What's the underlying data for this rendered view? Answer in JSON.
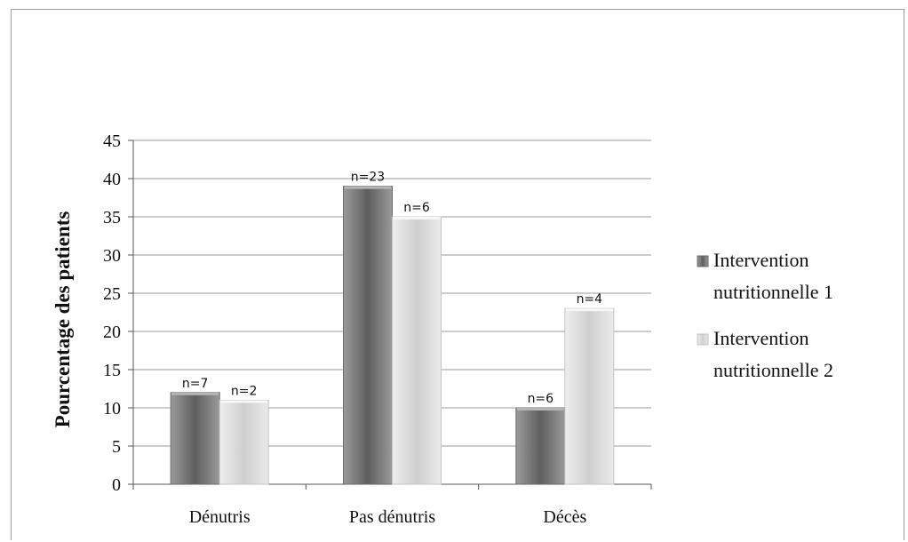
{
  "chart_data": {
    "type": "bar",
    "categories": [
      "Dénutris",
      "Pas dénutris",
      "Décès"
    ],
    "ylabel": "Pourcentage des patients",
    "xlabel": "",
    "ylim": [
      0,
      45
    ],
    "yticks": [
      0,
      5,
      10,
      15,
      20,
      25,
      30,
      35,
      40,
      45
    ],
    "grid": true,
    "legend_position": "right",
    "series": [
      {
        "name": "Intervention nutritionnelle 1",
        "values": [
          12,
          39,
          10
        ],
        "labels": [
          "n=7",
          "n=23",
          "n=6"
        ],
        "color": "#7a7a7a"
      },
      {
        "name": "Intervention nutritionnelle 2",
        "values": [
          11,
          35,
          23
        ],
        "labels": [
          "n=2",
          "n=6",
          "n=4"
        ],
        "color": "#d9d9d9"
      }
    ]
  }
}
